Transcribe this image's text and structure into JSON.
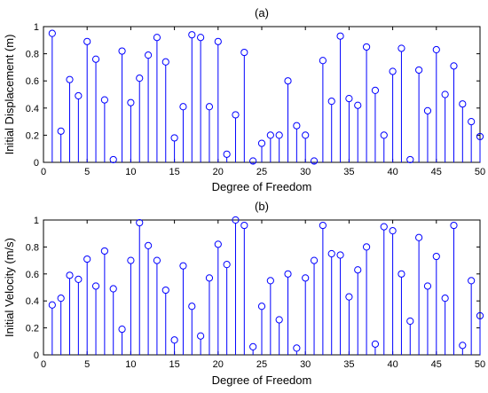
{
  "chart_data": [
    {
      "type": "stem",
      "title": "(a)",
      "xlabel": "Degree of Freedom",
      "ylabel": "Initial Displacement (m)",
      "xlim": [
        0,
        50
      ],
      "ylim": [
        0,
        1
      ],
      "xticks": [
        "0",
        "5",
        "10",
        "15",
        "20",
        "25",
        "30",
        "35",
        "40",
        "45",
        "50"
      ],
      "yticks": [
        "0",
        "0.2",
        "0.4",
        "0.6",
        "0.8",
        "1"
      ],
      "grid": false,
      "color": "#0000ff",
      "series": [
        {
          "x": [
            1,
            2,
            3,
            4,
            5,
            6,
            7,
            8,
            9,
            10,
            11,
            12,
            13,
            14,
            15,
            16,
            17,
            18,
            19,
            20,
            21,
            22,
            23,
            24,
            25,
            26,
            27,
            28,
            29,
            30,
            31,
            32,
            33,
            34,
            35,
            36,
            37,
            38,
            39,
            40,
            41,
            42,
            43,
            44,
            45,
            46,
            47,
            48,
            49,
            50
          ],
          "values": [
            0.95,
            0.23,
            0.61,
            0.49,
            0.89,
            0.76,
            0.46,
            0.02,
            0.82,
            0.44,
            0.62,
            0.79,
            0.92,
            0.74,
            0.18,
            0.41,
            0.94,
            0.92,
            0.41,
            0.89,
            0.06,
            0.35,
            0.81,
            0.01,
            0.14,
            0.2,
            0.2,
            0.6,
            0.27,
            0.2,
            0.01,
            0.75,
            0.45,
            0.93,
            0.47,
            0.42,
            0.85,
            0.53,
            0.2,
            0.67,
            0.84,
            0.02,
            0.68,
            0.38,
            0.83,
            0.5,
            0.71,
            0.43,
            0.3,
            0.19
          ]
        }
      ]
    },
    {
      "type": "stem",
      "title": "(b)",
      "xlabel": "Degree of Freedom",
      "ylabel": "Initial Velocity (m/s)",
      "xlim": [
        0,
        50
      ],
      "ylim": [
        0,
        1
      ],
      "xticks": [
        "0",
        "5",
        "10",
        "15",
        "20",
        "25",
        "30",
        "35",
        "40",
        "45",
        "50"
      ],
      "yticks": [
        "0",
        "0.2",
        "0.4",
        "0.6",
        "0.8",
        "1"
      ],
      "grid": false,
      "color": "#0000ff",
      "series": [
        {
          "x": [
            1,
            2,
            3,
            4,
            5,
            6,
            7,
            8,
            9,
            10,
            11,
            12,
            13,
            14,
            15,
            16,
            17,
            18,
            19,
            20,
            21,
            22,
            23,
            24,
            25,
            26,
            27,
            28,
            29,
            30,
            31,
            32,
            33,
            34,
            35,
            36,
            37,
            38,
            39,
            40,
            41,
            42,
            43,
            44,
            45,
            46,
            47,
            48,
            49,
            50
          ],
          "values": [
            0.37,
            0.42,
            0.59,
            0.56,
            0.71,
            0.51,
            0.77,
            0.49,
            0.19,
            0.7,
            0.98,
            0.81,
            0.7,
            0.48,
            0.11,
            0.66,
            0.36,
            0.14,
            0.57,
            0.82,
            0.67,
            1.0,
            0.96,
            0.06,
            0.36,
            0.55,
            0.26,
            0.6,
            0.05,
            0.57,
            0.7,
            0.96,
            0.75,
            0.74,
            0.43,
            0.63,
            0.8,
            0.08,
            0.95,
            0.92,
            0.6,
            0.25,
            0.87,
            0.51,
            0.73,
            0.42,
            0.96,
            0.07,
            0.55,
            0.29
          ]
        }
      ]
    }
  ]
}
